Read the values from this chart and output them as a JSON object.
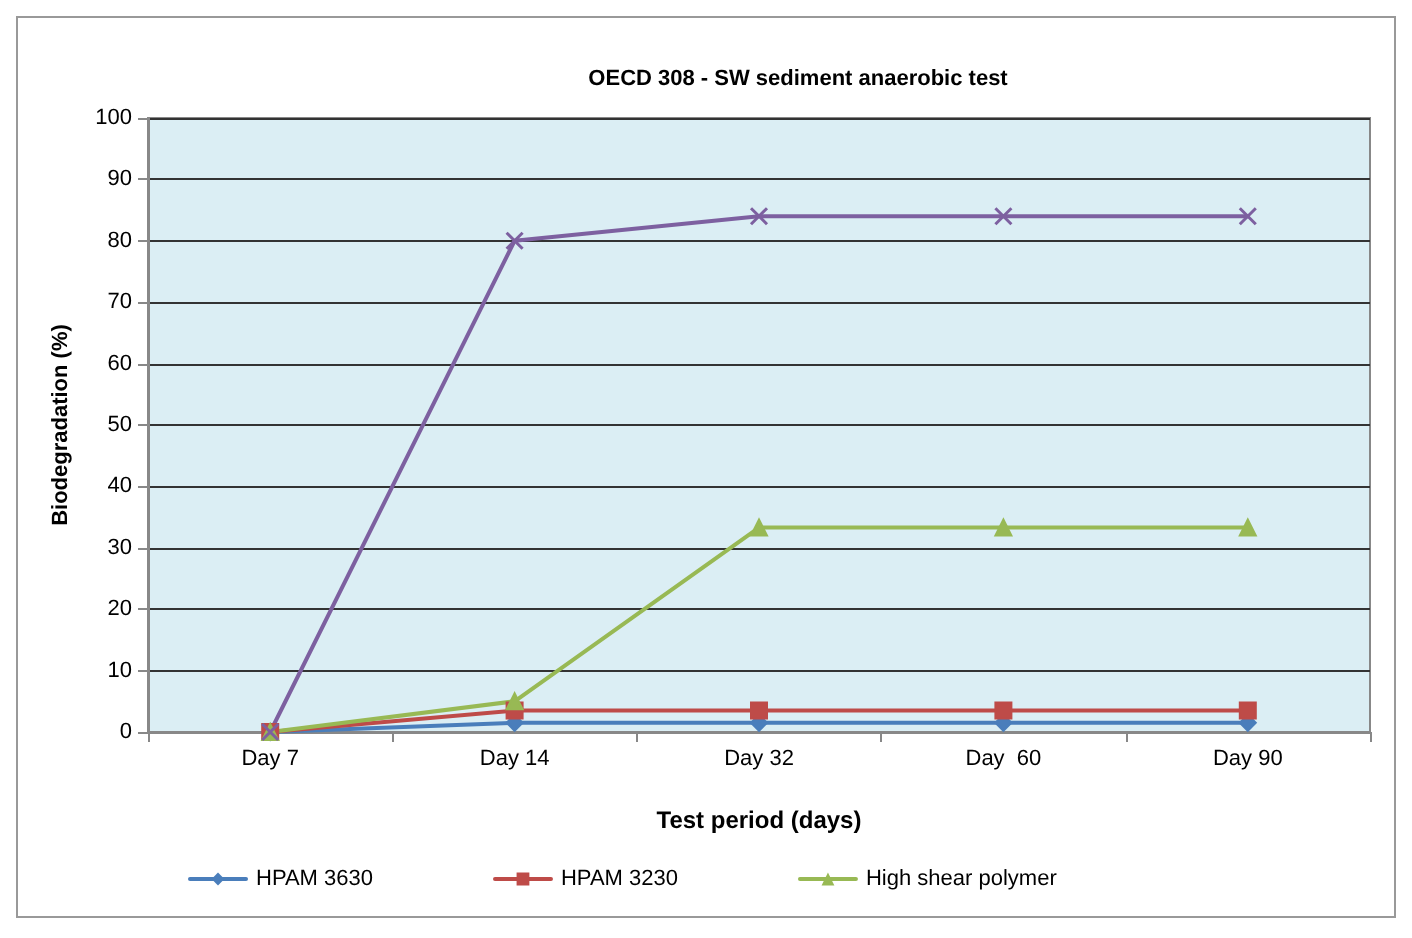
{
  "chart_data": {
    "type": "line",
    "title": "OECD 308 - SW sediment anaerobic test",
    "xlabel": "Test period (days)",
    "ylabel": "Biodegradation (%)",
    "categories": [
      "Day 7",
      "Day 14",
      "Day 32",
      "Day  60",
      "Day 90"
    ],
    "series": [
      {
        "name": "HPAM 3630",
        "color": "#4a7ebb",
        "marker": "diamond",
        "values": [
          0,
          1.5,
          1.5,
          1.5,
          1.5
        ]
      },
      {
        "name": "HPAM 3230",
        "color": "#be4b48",
        "marker": "square",
        "values": [
          0,
          3.5,
          3.5,
          3.5,
          3.5
        ]
      },
      {
        "name": "High shear polymer",
        "color": "#98b954",
        "marker": "triangle",
        "values": [
          0,
          5,
          33.3,
          33.3,
          33.3
        ]
      },
      {
        "color": "#7d60a0",
        "marker": "cross",
        "values": [
          0,
          80,
          84,
          84,
          84
        ]
      }
    ],
    "ylim": [
      0,
      100
    ],
    "yticks": [
      0,
      10,
      20,
      30,
      40,
      50,
      60,
      70,
      80,
      90,
      100
    ],
    "grid": "y",
    "legend": "bottom"
  }
}
